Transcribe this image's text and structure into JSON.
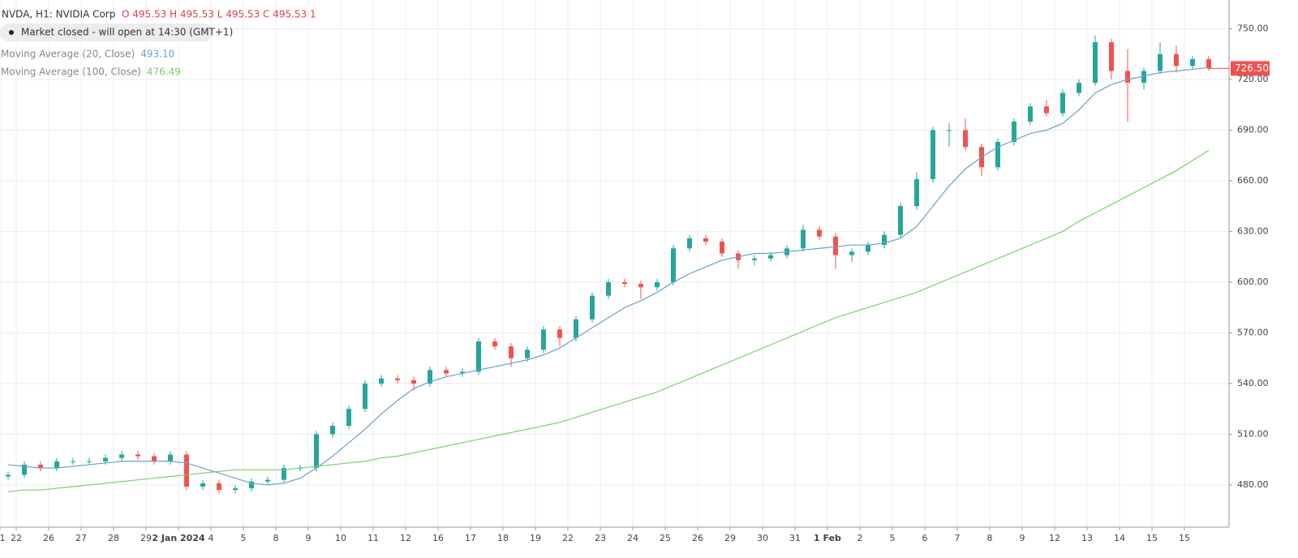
{
  "chart_data": {
    "type": "candlestick",
    "title": "NVDA, H1: NVIDIA Corp",
    "ohlc_text": "O 495.53 H 495.53 L 495.53 C 495.53 1",
    "status": "Market closed - will open at 14:30 (GMT+1)",
    "categories": [
      "1",
      "22",
      null,
      "26",
      null,
      "27",
      null,
      "28",
      null,
      "29",
      null,
      "2 Jan 2024",
      null,
      "4",
      null,
      "5",
      null,
      "8",
      null,
      "9",
      null,
      "10",
      null,
      "11",
      null,
      "12",
      null,
      "16",
      null,
      "17",
      null,
      "18",
      null,
      "19",
      null,
      "22",
      null,
      "23",
      null,
      "24",
      null,
      "25",
      null,
      "26",
      null,
      "29",
      null,
      "30",
      null,
      "31",
      null,
      "1 Feb",
      null,
      "2",
      null,
      "5",
      null,
      "6",
      null,
      "7",
      null,
      "8",
      null,
      "9",
      null,
      "12",
      null,
      "13",
      null,
      "14",
      null,
      "15",
      null,
      "15",
      null
    ],
    "open": [
      485,
      486,
      492,
      490,
      494,
      494,
      494,
      496,
      498,
      497,
      494,
      498,
      479,
      481,
      477,
      478,
      482,
      483,
      490,
      490,
      510,
      515,
      525,
      540,
      543,
      542,
      540,
      548,
      546,
      547,
      565,
      562,
      555,
      560,
      572,
      567,
      578,
      592,
      600,
      599,
      597,
      600,
      620,
      626,
      624,
      617,
      613,
      614,
      616,
      620,
      631,
      627,
      616,
      618,
      622,
      628,
      645,
      661,
      690,
      690,
      680,
      668,
      683,
      695,
      704,
      700,
      712,
      718,
      742,
      725,
      718,
      725,
      735,
      728,
      732
    ],
    "high": [
      488,
      494,
      494,
      496,
      496,
      496,
      498,
      500,
      500,
      499,
      500,
      500,
      483,
      483,
      480,
      484,
      485,
      492,
      492,
      512,
      517,
      527,
      542,
      545,
      545,
      544,
      550,
      550,
      549,
      567,
      567,
      564,
      562,
      574,
      574,
      580,
      594,
      602,
      602,
      601,
      602,
      622,
      628,
      628,
      626,
      619,
      616,
      618,
      622,
      634,
      633,
      629,
      620,
      624,
      630,
      647,
      665,
      692,
      694,
      697,
      682,
      685,
      697,
      706,
      708,
      714,
      720,
      746,
      744,
      738,
      727,
      742,
      740,
      734,
      734
    ],
    "low": [
      483,
      484,
      488,
      488,
      492,
      492,
      492,
      494,
      495,
      492,
      492,
      477,
      477,
      475,
      475,
      476,
      480,
      481,
      488,
      488,
      508,
      513,
      523,
      538,
      540,
      536,
      538,
      544,
      544,
      545,
      560,
      550,
      553,
      558,
      562,
      565,
      576,
      590,
      597,
      590,
      595,
      598,
      618,
      622,
      615,
      608,
      610,
      612,
      614,
      618,
      625,
      608,
      612,
      616,
      620,
      626,
      643,
      659,
      680,
      678,
      663,
      666,
      681,
      693,
      698,
      698,
      710,
      716,
      720,
      695,
      714,
      723,
      724,
      726,
      725
    ],
    "close": [
      486,
      492,
      490,
      494,
      494,
      494,
      496,
      498,
      497,
      494,
      498,
      479,
      481,
      477,
      478,
      482,
      483,
      490,
      490,
      510,
      515,
      525,
      540,
      543,
      542,
      540,
      548,
      546,
      547,
      565,
      562,
      555,
      560,
      572,
      567,
      578,
      592,
      600,
      599,
      597,
      600,
      620,
      626,
      624,
      617,
      613,
      614,
      616,
      620,
      631,
      627,
      616,
      618,
      622,
      628,
      645,
      661,
      690,
      690,
      680,
      668,
      683,
      695,
      704,
      700,
      712,
      718,
      742,
      725,
      718,
      725,
      735,
      728,
      732,
      726.5
    ],
    "up_color": "#26a69a",
    "down_color": "#ef5350",
    "series": [
      {
        "name": "Moving Average (20, Close)",
        "legend_value": "493.10",
        "color": "#6a9fcf",
        "values": [
          492,
          491,
          490,
          490,
          491,
          492,
          493,
          494,
          494,
          494,
          494,
          493,
          490,
          487,
          484,
          481,
          480,
          481,
          484,
          490,
          497,
          505,
          513,
          522,
          530,
          537,
          541,
          544,
          546,
          548,
          550,
          552,
          554,
          557,
          561,
          567,
          573,
          579,
          585,
          589,
          594,
          600,
          605,
          609,
          613,
          615,
          617,
          617,
          618,
          619,
          620,
          621,
          622,
          622,
          623,
          626,
          633,
          645,
          657,
          667,
          674,
          680,
          684,
          688,
          690,
          694,
          702,
          712,
          717,
          720,
          722,
          724,
          725,
          726,
          727
        ]
      },
      {
        "name": "Moving Average (100, Close)",
        "legend_value": "476.49",
        "color": "#7ccf6b",
        "values": [
          476,
          477,
          477,
          478,
          479,
          480,
          481,
          482,
          483,
          484,
          485,
          486,
          487,
          488,
          489,
          489,
          489,
          489,
          490,
          491,
          492,
          493,
          494,
          496,
          497,
          499,
          501,
          503,
          505,
          507,
          509,
          511,
          513,
          515,
          517,
          520,
          523,
          526,
          529,
          532,
          535,
          539,
          543,
          547,
          551,
          555,
          559,
          563,
          567,
          571,
          575,
          579,
          582,
          585,
          588,
          591,
          594,
          598,
          602,
          606,
          610,
          614,
          618,
          622,
          626,
          630,
          636,
          641,
          646,
          651,
          656,
          661,
          666,
          672,
          678
        ]
      }
    ],
    "ylim": [
      455,
      767
    ],
    "yticks": [
      {
        "value": 480,
        "label": "480.00"
      },
      {
        "value": 510,
        "label": "510.00"
      },
      {
        "value": 540,
        "label": "540.00"
      },
      {
        "value": 570,
        "label": "570.00"
      },
      {
        "value": 600,
        "label": "600.00"
      },
      {
        "value": 630,
        "label": "630.00"
      },
      {
        "value": 660,
        "label": "660.00"
      },
      {
        "value": 690,
        "label": "690.00"
      },
      {
        "value": 720,
        "label": "720.00"
      },
      {
        "value": 750,
        "label": "750.00"
      }
    ],
    "grid": true,
    "last_price_label": "726.50"
  }
}
